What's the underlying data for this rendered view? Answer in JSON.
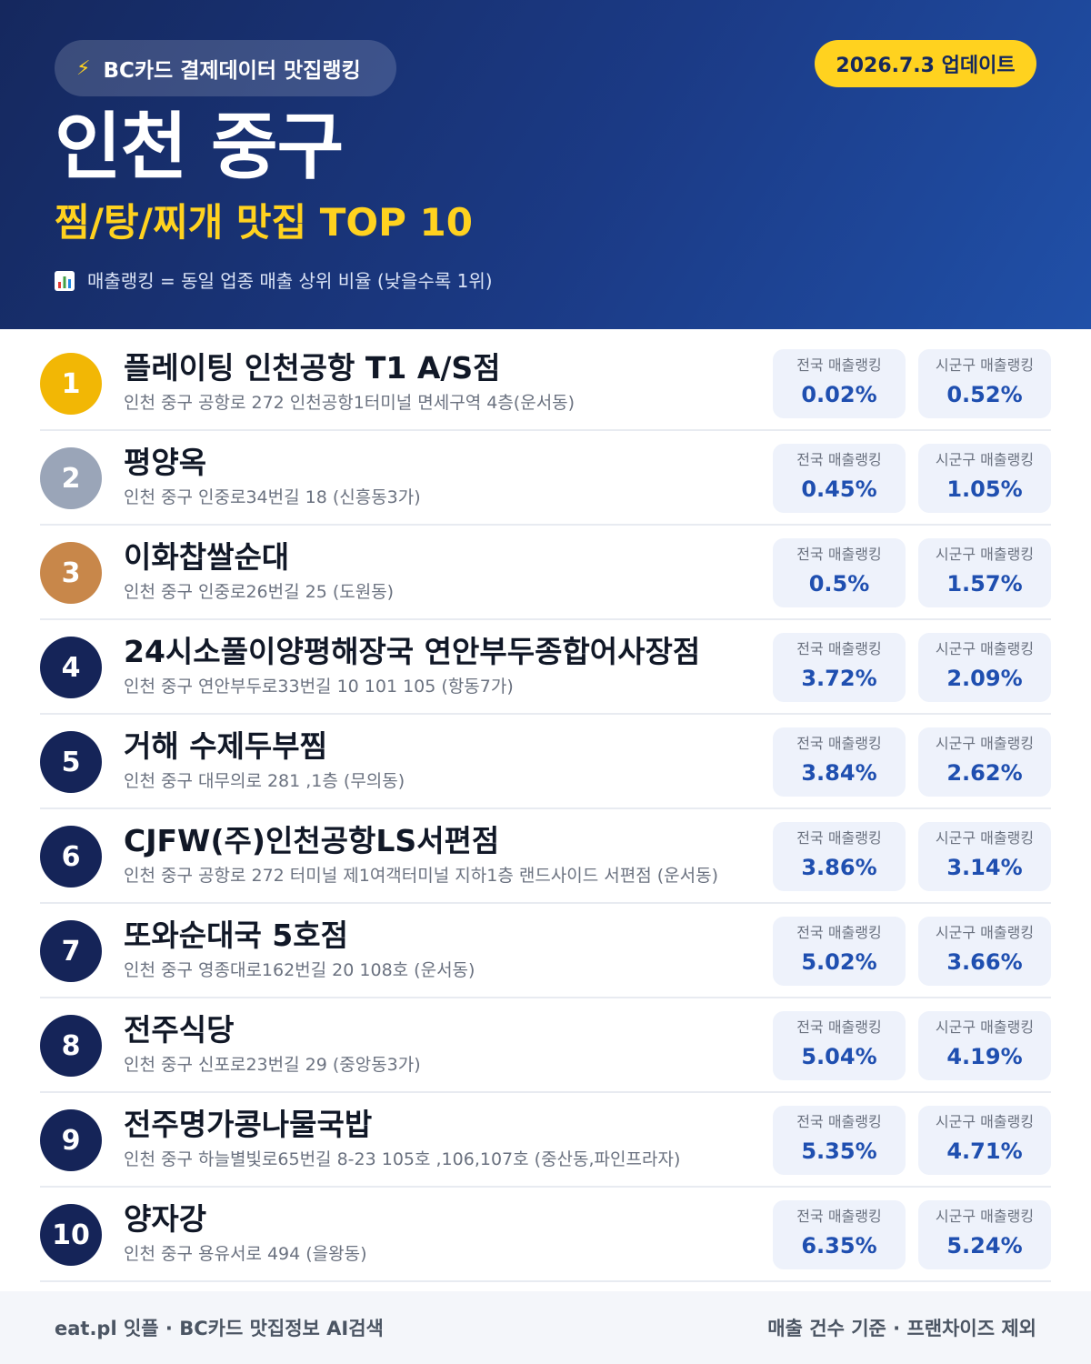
{
  "header": {
    "source_label": "BC카드 결제데이터 맛집랭킹",
    "update_label": "2026.7.3 업데이트",
    "region": "인천 중구",
    "category_title": "찜/탕/찌개 맛집 TOP 10",
    "note": "매출랭킹 = 동일 업종 매출 상위 비율 (낮을수록 1위)",
    "icons": [
      "lightning-icon",
      "bar-chart-icon"
    ],
    "colors": {
      "accent": "#ffd21f",
      "header_bg": "#1b3a85",
      "rank_badge": "#152458",
      "value_text": "#1f4fb0"
    }
  },
  "stat_labels": {
    "national": "전국 매출랭킹",
    "district": "시군구 매출랭킹"
  },
  "restaurants": [
    {
      "rank": "1",
      "name": "플레이팅 인천공항 T1 A/S점",
      "address": "인천 중구 공항로 272 인천공항1터미널 면세구역 4층(운서동)",
      "national": "0.02%",
      "district": "0.52%",
      "badge": "gold"
    },
    {
      "rank": "2",
      "name": "평양옥",
      "address": "인천 중구 인중로34번길 18 (신흥동3가)",
      "national": "0.45%",
      "district": "1.05%",
      "badge": "silver"
    },
    {
      "rank": "3",
      "name": "이화찹쌀순대",
      "address": "인천 중구 인중로26번길 25 (도원동)",
      "national": "0.5%",
      "district": "1.57%",
      "badge": "bronze"
    },
    {
      "rank": "4",
      "name": "24시소풀이양평해장국 연안부두종합어사장점",
      "address": "인천 중구 연안부두로33번길 10 101 105 (항동7가)",
      "national": "3.72%",
      "district": "2.09%",
      "badge": "navy"
    },
    {
      "rank": "5",
      "name": "거해 수제두부찜",
      "address": "인천 중구 대무의로 281 ,1층 (무의동)",
      "national": "3.84%",
      "district": "2.62%",
      "badge": "navy"
    },
    {
      "rank": "6",
      "name": "CJFW(주)인천공항LS서편점",
      "address": "인천 중구 공항로 272 터미널 제1여객터미널 지하1층 랜드사이드 서편점 (운서동)",
      "national": "3.86%",
      "district": "3.14%",
      "badge": "navy"
    },
    {
      "rank": "7",
      "name": "또와순대국 5호점",
      "address": "인천 중구 영종대로162번길 20 108호 (운서동)",
      "national": "5.02%",
      "district": "3.66%",
      "badge": "navy"
    },
    {
      "rank": "8",
      "name": "전주식당",
      "address": "인천 중구 신포로23번길 29 (중앙동3가)",
      "national": "5.04%",
      "district": "4.19%",
      "badge": "navy"
    },
    {
      "rank": "9",
      "name": "전주명가콩나물국밥",
      "address": "인천 중구 하늘별빛로65번길 8-23 105호 ,106,107호 (중산동,파인프라자)",
      "national": "5.35%",
      "district": "4.71%",
      "badge": "navy"
    },
    {
      "rank": "10",
      "name": "양자강",
      "address": "인천 중구 용유서로 494 (을왕동)",
      "national": "6.35%",
      "district": "5.24%",
      "badge": "navy"
    }
  ],
  "footer": {
    "left": "eat.pl 잇플 · BC카드 맛집정보 AI검색",
    "right": "매출 건수 기준 · 프랜차이즈 제외"
  }
}
